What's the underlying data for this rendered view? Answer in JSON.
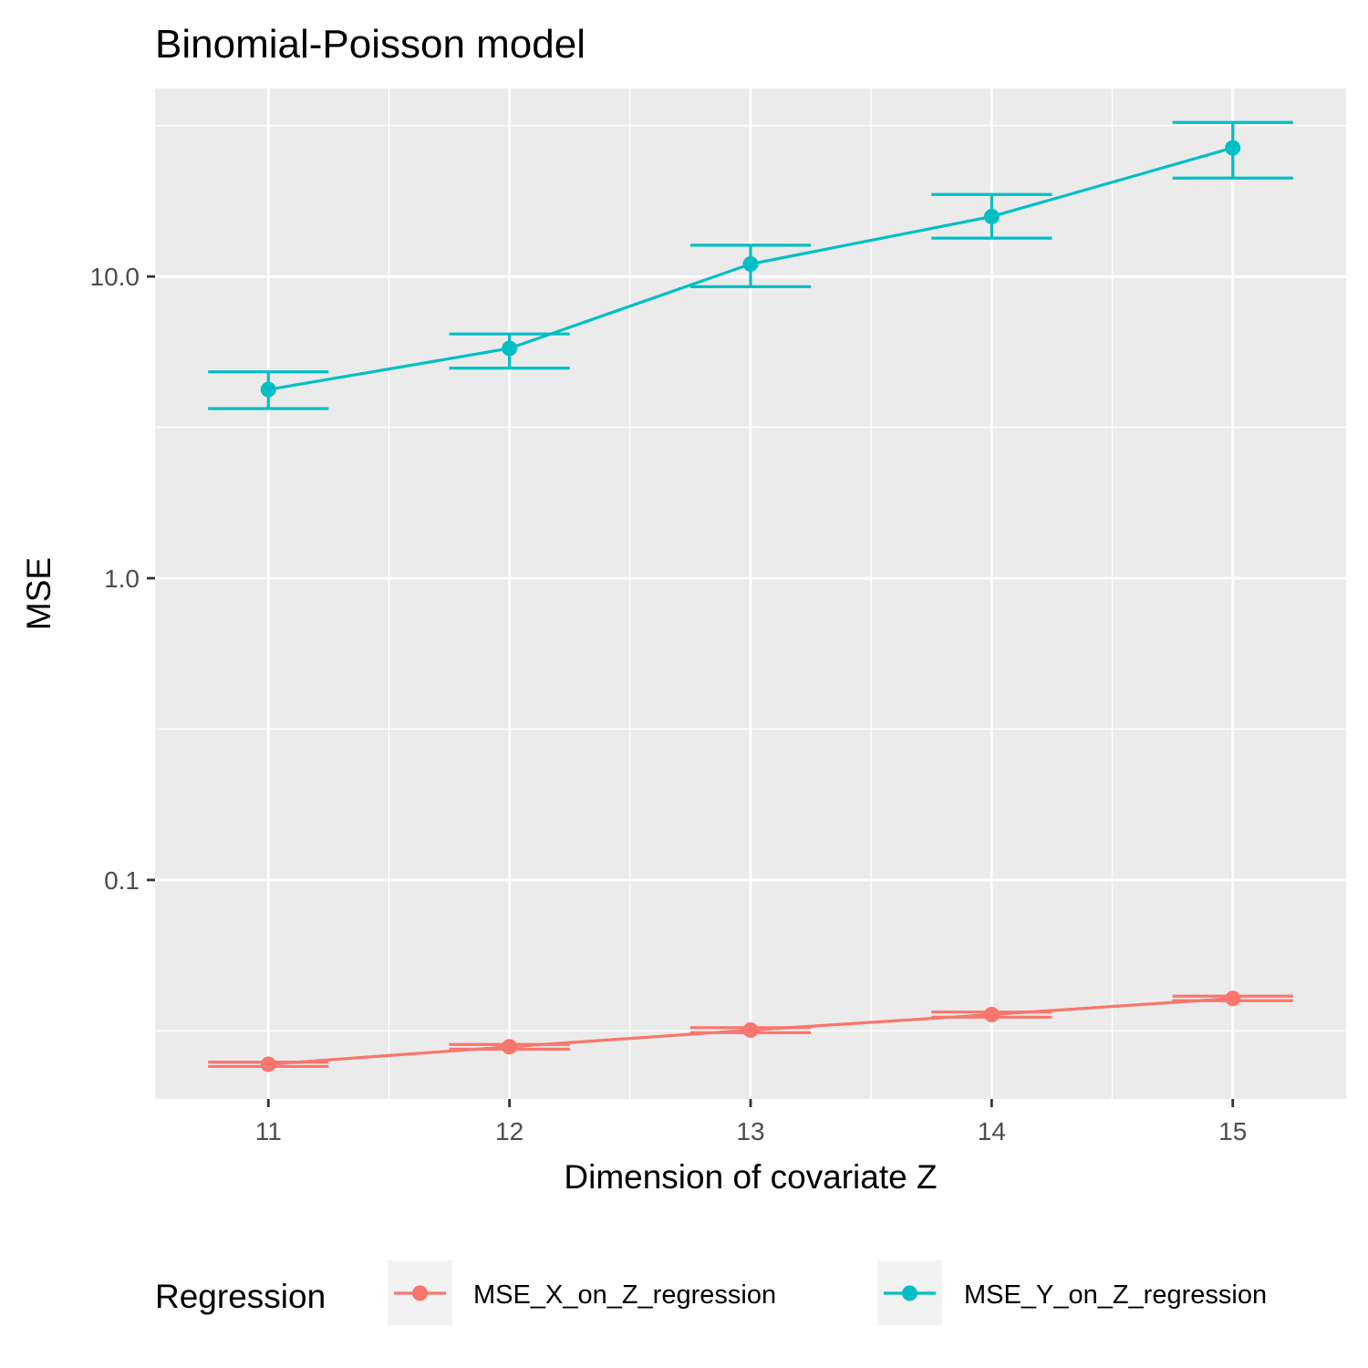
{
  "chart_data": {
    "type": "line",
    "title": "Binomial-Poisson model",
    "xlabel": "Dimension of covariate Z",
    "ylabel": "MSE",
    "y_scale": "log10",
    "xlim": [
      10.53,
      15.47
    ],
    "ylim": [
      0.0188,
      42.0
    ],
    "x_ticks": [
      11,
      12,
      13,
      14,
      15
    ],
    "x_tick_labels": [
      "11",
      "12",
      "13",
      "14",
      "15"
    ],
    "y_ticks": [
      0.1,
      1.0,
      10.0
    ],
    "y_tick_labels": [
      "0.1",
      "1.0",
      "10.0"
    ],
    "grid": true,
    "legend_position": "bottom",
    "legend_title": "Regression",
    "x": [
      11,
      12,
      13,
      14,
      15
    ],
    "series": [
      {
        "name": "MSE_X_on_Z_regression",
        "color": "#F8766D",
        "values": [
          0.0245,
          0.028,
          0.0318,
          0.0358,
          0.0405
        ],
        "error_lower": [
          0.0241,
          0.0275,
          0.0312,
          0.0351,
          0.0398
        ],
        "error_upper": [
          0.0249,
          0.0285,
          0.0324,
          0.0365,
          0.0412
        ]
      },
      {
        "name": "MSE_Y_on_Z_regression",
        "color": "#00BFC4",
        "values": [
          4.22,
          5.78,
          11.0,
          15.8,
          26.7
        ],
        "error_lower": [
          3.65,
          4.97,
          9.25,
          13.4,
          21.2
        ],
        "error_upper": [
          4.83,
          6.45,
          12.7,
          18.7,
          32.4
        ]
      }
    ]
  }
}
